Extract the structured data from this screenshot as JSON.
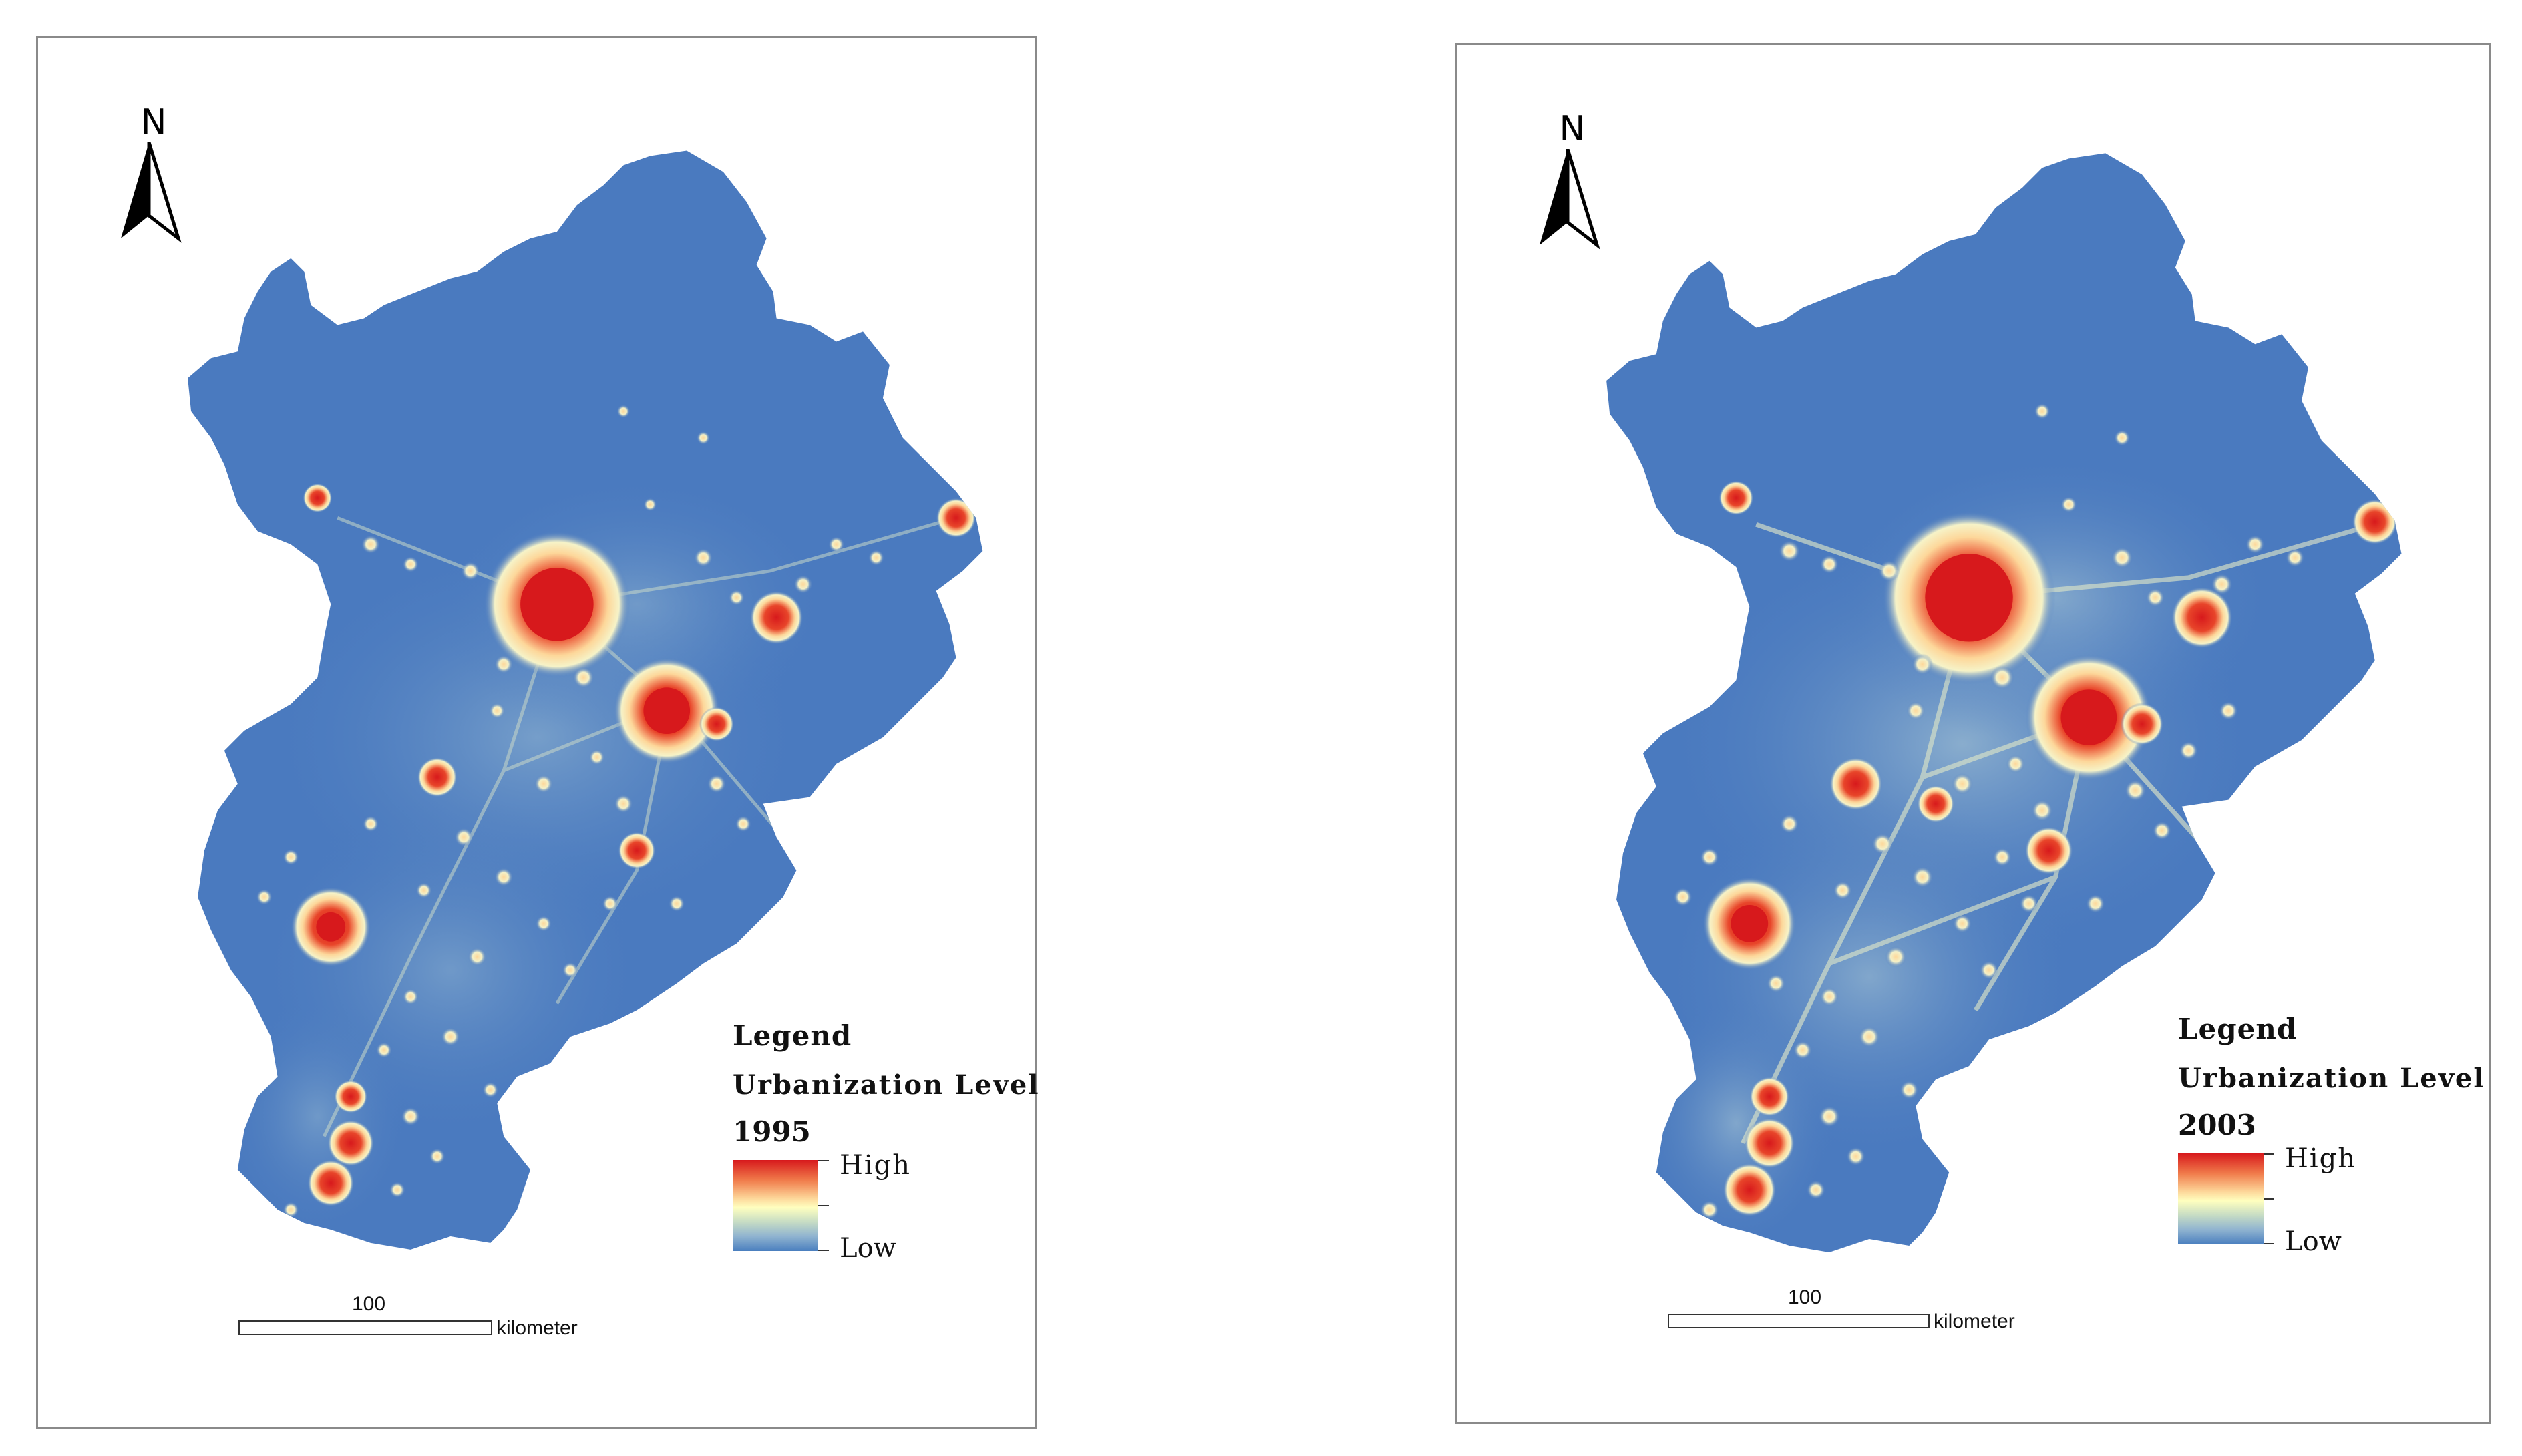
{
  "maps": [
    {
      "id": "1995",
      "north_label": "N",
      "legend": {
        "title": "Legend",
        "subtitle": "Urbanization Level",
        "year": "1995",
        "high_label": "High",
        "low_label": "Low"
      },
      "scale": {
        "value": "100",
        "unit": "kilometer"
      }
    },
    {
      "id": "2003",
      "north_label": "N",
      "legend": {
        "title": "Legend",
        "subtitle": "Urbanization Level",
        "year": "2003",
        "high_label": "High",
        "low_label": "Low"
      },
      "scale": {
        "value": "100",
        "unit": "kilometer"
      }
    }
  ],
  "colors": {
    "land_low": "#4a7abf",
    "mid": "#ffffbf",
    "high": "#d7191c",
    "frame": "#8a8a8a"
  }
}
